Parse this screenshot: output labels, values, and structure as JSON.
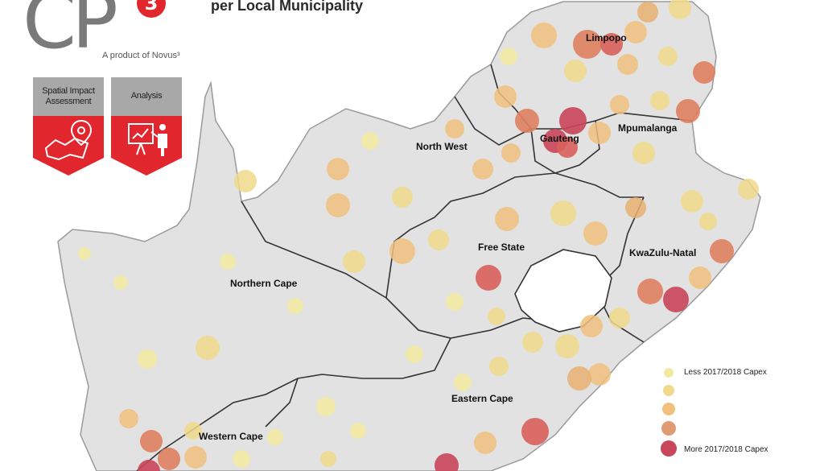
{
  "header": {
    "logo_text": "CP",
    "logo_badge": "3",
    "tagline": "A product of Novus³",
    "title": "per Local Municipality"
  },
  "tiles": [
    {
      "label_line1": "Spatial Impact",
      "label_line2": "Assessment",
      "icon": "map-pin-icon"
    },
    {
      "label_line1": "Analysis",
      "label_line2": "",
      "icon": "presenter-chart-icon"
    }
  ],
  "provinces": [
    {
      "name": "Limpopo"
    },
    {
      "name": "Mpumalanga"
    },
    {
      "name": "Gauteng"
    },
    {
      "name": "North West"
    },
    {
      "name": "Free State"
    },
    {
      "name": "KwaZulu-Natal"
    },
    {
      "name": "Northern Cape"
    },
    {
      "name": "Eastern Cape"
    },
    {
      "name": "Western Cape"
    }
  ],
  "legend": [
    {
      "label": "Less 2017/2018 Capex",
      "color": "#f3eaa0"
    },
    {
      "label": "",
      "color": "#f0d98a"
    },
    {
      "label": "",
      "color": "#f0c07c"
    },
    {
      "label": "",
      "color": "#df9b74"
    },
    {
      "label": "More 2017/2018 Capex",
      "color": "#c9455a"
    }
  ],
  "colors": {
    "land": "#e2e2e2",
    "border": "#9a9a9a",
    "province_border": "#333333",
    "brand_red": "#e1262d",
    "tile_grey": "#a8a8a8"
  }
}
